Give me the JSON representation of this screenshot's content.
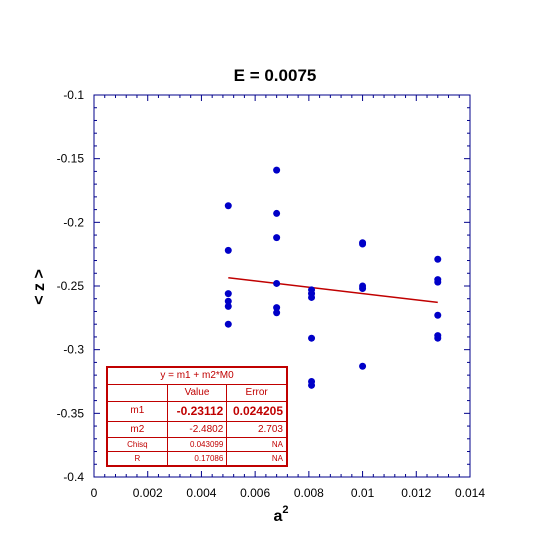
{
  "chart_data": {
    "type": "scatter",
    "title": "E = 0.0075",
    "xlabel": "a",
    "xlabel_sup": "2",
    "ylabel": "< z >",
    "xlim": [
      0,
      0.014
    ],
    "ylim": [
      -0.4,
      -0.1
    ],
    "x_ticks": [
      "0",
      "0.002",
      "0.004",
      "0.006",
      "0.008",
      "0.01",
      "0.012",
      "0.014"
    ],
    "y_ticks": [
      "-0.1",
      "-0.15",
      "-0.2",
      "-0.25",
      "-0.3",
      "-0.35",
      "-0.4"
    ],
    "points": [
      {
        "x": 0.005,
        "y": -0.187
      },
      {
        "x": 0.005,
        "y": -0.222
      },
      {
        "x": 0.005,
        "y": -0.256
      },
      {
        "x": 0.005,
        "y": -0.262
      },
      {
        "x": 0.005,
        "y": -0.266
      },
      {
        "x": 0.005,
        "y": -0.28
      },
      {
        "x": 0.0068,
        "y": -0.159
      },
      {
        "x": 0.0068,
        "y": -0.193
      },
      {
        "x": 0.0068,
        "y": -0.212
      },
      {
        "x": 0.0068,
        "y": -0.248
      },
      {
        "x": 0.0068,
        "y": -0.267
      },
      {
        "x": 0.0068,
        "y": -0.271
      },
      {
        "x": 0.0081,
        "y": -0.253
      },
      {
        "x": 0.0081,
        "y": -0.256
      },
      {
        "x": 0.0081,
        "y": -0.259
      },
      {
        "x": 0.0081,
        "y": -0.291
      },
      {
        "x": 0.0081,
        "y": -0.325
      },
      {
        "x": 0.0081,
        "y": -0.328
      },
      {
        "x": 0.01,
        "y": -0.216
      },
      {
        "x": 0.01,
        "y": -0.217
      },
      {
        "x": 0.01,
        "y": -0.25
      },
      {
        "x": 0.01,
        "y": -0.252
      },
      {
        "x": 0.01,
        "y": -0.313
      },
      {
        "x": 0.0128,
        "y": -0.229
      },
      {
        "x": 0.0128,
        "y": -0.245
      },
      {
        "x": 0.0128,
        "y": -0.247
      },
      {
        "x": 0.0128,
        "y": -0.273
      },
      {
        "x": 0.0128,
        "y": -0.289
      },
      {
        "x": 0.0128,
        "y": -0.291
      }
    ],
    "fit": {
      "x_range": [
        0.005,
        0.0128
      ],
      "m1": -0.23112,
      "m2": -2.4802
    },
    "point_color": "#0000c8",
    "fit_color": "#c00000",
    "axis_color": "#00008b",
    "grid": false
  },
  "fit_table": {
    "equation": "y = m1 + m2*M0",
    "col_value": "Value",
    "col_error": "Error",
    "rows": [
      {
        "label": "m1",
        "value": "-0.23112",
        "error": "0.024205"
      },
      {
        "label": "m2",
        "value": "-2.4802",
        "error": "2.703"
      },
      {
        "label": "Chisq",
        "value": "0.043099",
        "error": "NA"
      },
      {
        "label": "R",
        "value": "0.17086",
        "error": "NA"
      }
    ]
  }
}
